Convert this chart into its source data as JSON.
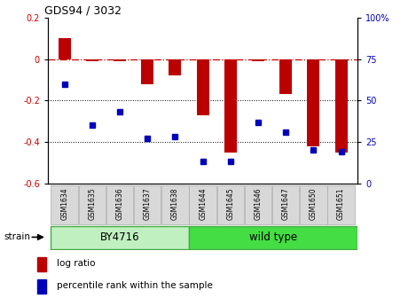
{
  "title": "GDS94 / 3032",
  "samples": [
    "GSM1634",
    "GSM1635",
    "GSM1636",
    "GSM1637",
    "GSM1638",
    "GSM1644",
    "GSM1645",
    "GSM1646",
    "GSM1647",
    "GSM1650",
    "GSM1651"
  ],
  "log_ratio": [
    0.1,
    -0.01,
    -0.01,
    -0.12,
    -0.08,
    -0.27,
    -0.45,
    -0.01,
    -0.17,
    -0.42,
    -0.45
  ],
  "percentile_rank": [
    60,
    35,
    43,
    27,
    28,
    13,
    13,
    37,
    31,
    20,
    19
  ],
  "groups": [
    {
      "label": "BY4716",
      "start": 0,
      "end": 5,
      "color_light": "#c8f0c8",
      "color_dark": "#44cc44"
    },
    {
      "label": "wild type",
      "start": 5,
      "end": 11,
      "color_light": "#44dd44",
      "color_dark": "#44cc44"
    }
  ],
  "ylim_left": [
    -0.6,
    0.2
  ],
  "ylim_right": [
    0,
    100
  ],
  "yticks_left": [
    -0.6,
    -0.4,
    -0.2,
    0.0,
    0.2
  ],
  "yticks_right": [
    0,
    25,
    50,
    75,
    100
  ],
  "ytick_labels_right": [
    "0",
    "25",
    "50",
    "75",
    "100%"
  ],
  "bar_color": "#bb0000",
  "dot_color": "#0000bb",
  "hline_color": "#cc0000",
  "gridline_color": "#000000",
  "plot_bg": "#ffffff",
  "strain_label": "strain",
  "legend_items": [
    "log ratio",
    "percentile rank within the sample"
  ],
  "bar_width": 0.45
}
